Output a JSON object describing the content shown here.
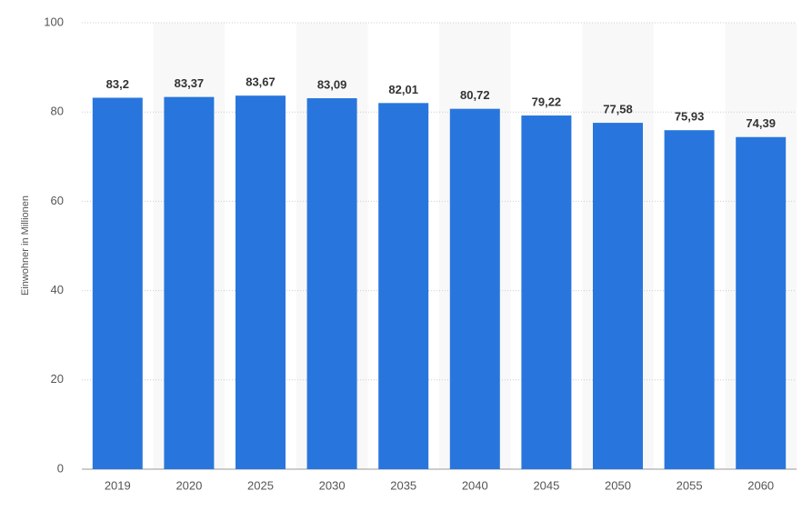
{
  "chart_data": {
    "type": "bar",
    "y_label": "Einwohner in Millionen",
    "categories": [
      "2019",
      "2020",
      "2025",
      "2030",
      "2035",
      "2040",
      "2045",
      "2050",
      "2055",
      "2060"
    ],
    "values": [
      83.2,
      83.37,
      83.67,
      83.09,
      82.01,
      80.72,
      79.22,
      77.58,
      75.93,
      74.39
    ],
    "value_labels": [
      "83,2",
      "83,37",
      "83,67",
      "83,09",
      "82,01",
      "80,72",
      "79,22",
      "77,58",
      "75,93",
      "74,39"
    ],
    "color": "#2876dd",
    "ylim": [
      0,
      100
    ],
    "yticks": [
      0,
      20,
      40,
      60,
      80,
      100
    ],
    "grid": true
  }
}
